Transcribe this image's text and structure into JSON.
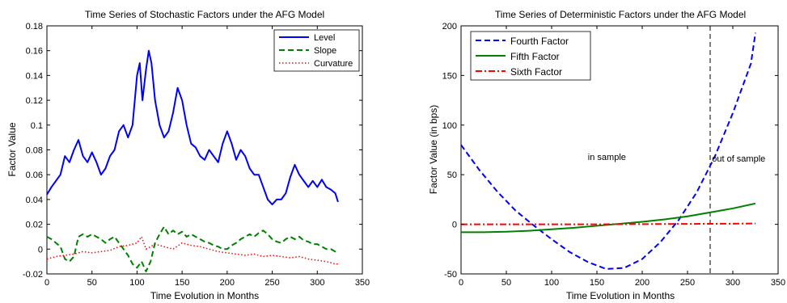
{
  "chart_data": [
    {
      "type": "line",
      "title": "Time Series of Stochastic Factors under the AFG Model",
      "xlabel": "Time Evolution in Months",
      "ylabel": "Factor Value",
      "xlim": [
        0,
        350
      ],
      "ylim": [
        -0.02,
        0.18
      ],
      "xticks": [
        0,
        50,
        100,
        150,
        200,
        250,
        300,
        350
      ],
      "yticks": [
        -0.02,
        0,
        0.02,
        0.04,
        0.06,
        0.08,
        0.1,
        0.12,
        0.14,
        0.16,
        0.18
      ],
      "xtick_labels": [
        "0",
        "50",
        "100",
        "150",
        "200",
        "250",
        "300",
        "350"
      ],
      "ytick_labels": [
        "-0.02",
        "0",
        "0.02",
        "0.04",
        "0.06",
        "0.08",
        "0.1",
        "0.12",
        "0.14",
        "0.16",
        "0.18"
      ],
      "grid": false,
      "legend_position": "top-right",
      "series": [
        {
          "name": "Level",
          "color": "#0000ff",
          "style": "solid",
          "x": [
            0,
            5,
            10,
            15,
            20,
            25,
            30,
            35,
            40,
            45,
            50,
            55,
            60,
            65,
            70,
            75,
            80,
            85,
            90,
            95,
            100,
            103,
            106,
            110,
            113,
            116,
            120,
            125,
            130,
            135,
            140,
            145,
            150,
            155,
            160,
            165,
            170,
            175,
            180,
            185,
            190,
            195,
            200,
            205,
            210,
            215,
            220,
            225,
            230,
            235,
            240,
            245,
            250,
            255,
            260,
            265,
            270,
            275,
            280,
            285,
            290,
            295,
            300,
            305,
            310,
            315,
            320,
            323
          ],
          "y": [
            0.044,
            0.05,
            0.055,
            0.06,
            0.075,
            0.07,
            0.08,
            0.088,
            0.075,
            0.07,
            0.078,
            0.07,
            0.06,
            0.065,
            0.075,
            0.08,
            0.095,
            0.1,
            0.09,
            0.1,
            0.14,
            0.15,
            0.12,
            0.145,
            0.16,
            0.15,
            0.12,
            0.1,
            0.09,
            0.095,
            0.11,
            0.13,
            0.12,
            0.1,
            0.085,
            0.082,
            0.075,
            0.072,
            0.08,
            0.075,
            0.07,
            0.085,
            0.095,
            0.085,
            0.072,
            0.08,
            0.075,
            0.065,
            0.06,
            0.06,
            0.05,
            0.04,
            0.036,
            0.04,
            0.04,
            0.045,
            0.058,
            0.068,
            0.06,
            0.055,
            0.05,
            0.055,
            0.05,
            0.056,
            0.05,
            0.048,
            0.045,
            0.038
          ]
        },
        {
          "name": "Slope",
          "color": "#008000",
          "style": "dashed",
          "x": [
            0,
            5,
            10,
            15,
            20,
            25,
            30,
            35,
            40,
            45,
            50,
            55,
            60,
            65,
            70,
            75,
            80,
            85,
            90,
            95,
            100,
            105,
            110,
            115,
            120,
            125,
            130,
            135,
            140,
            145,
            150,
            155,
            160,
            165,
            170,
            175,
            180,
            185,
            190,
            195,
            200,
            205,
            210,
            215,
            220,
            225,
            230,
            235,
            240,
            245,
            250,
            255,
            260,
            265,
            270,
            275,
            280,
            285,
            290,
            295,
            300,
            305,
            310,
            315,
            320,
            323
          ],
          "y": [
            0.01,
            0.008,
            0.005,
            0.002,
            -0.008,
            -0.01,
            -0.006,
            0.01,
            0.012,
            0.01,
            0.012,
            0.01,
            0.008,
            0.005,
            0.008,
            0.01,
            0.005,
            0.0,
            -0.005,
            -0.012,
            -0.015,
            -0.01,
            -0.018,
            -0.01,
            0.005,
            0.012,
            0.018,
            0.012,
            0.015,
            0.012,
            0.014,
            0.01,
            0.012,
            0.01,
            0.008,
            0.006,
            0.005,
            0.003,
            0.002,
            0.0,
            0.0,
            0.003,
            0.005,
            0.008,
            0.01,
            0.012,
            0.01,
            0.013,
            0.015,
            0.012,
            0.008,
            0.006,
            0.005,
            0.008,
            0.01,
            0.008,
            0.01,
            0.007,
            0.006,
            0.004,
            0.004,
            0.002,
            0.0,
            0.0,
            -0.002,
            -0.001
          ]
        },
        {
          "name": "Curvature",
          "color": "#ff0000",
          "style": "dotted",
          "x": [
            0,
            10,
            20,
            30,
            40,
            50,
            60,
            70,
            80,
            90,
            100,
            105,
            110,
            120,
            130,
            140,
            150,
            160,
            170,
            180,
            190,
            200,
            210,
            220,
            230,
            240,
            250,
            260,
            270,
            280,
            290,
            300,
            310,
            320,
            323
          ],
          "y": [
            -0.008,
            -0.006,
            -0.005,
            -0.004,
            -0.002,
            -0.003,
            -0.002,
            -0.001,
            0.002,
            0.003,
            0.005,
            0.01,
            0.0,
            0.004,
            0.002,
            0.0,
            0.005,
            0.003,
            0.002,
            0.0,
            -0.002,
            -0.003,
            -0.004,
            -0.005,
            -0.004,
            -0.006,
            -0.005,
            -0.006,
            -0.007,
            -0.006,
            -0.008,
            -0.009,
            -0.01,
            -0.012,
            -0.012
          ]
        }
      ]
    },
    {
      "type": "line",
      "title": "Time Series of Deterministic Factors under the AFG Model",
      "xlabel": "Time Evolution in Months",
      "ylabel": "Factor Value (in bps)",
      "xlim": [
        0,
        350
      ],
      "ylim": [
        -50,
        200
      ],
      "xticks": [
        0,
        50,
        100,
        150,
        200,
        250,
        300,
        350
      ],
      "yticks": [
        -50,
        0,
        50,
        100,
        150,
        200
      ],
      "xtick_labels": [
        "0",
        "50",
        "100",
        "150",
        "200",
        "250",
        "300",
        "350"
      ],
      "ytick_labels": [
        "-50",
        "0",
        "50",
        "100",
        "150",
        "200"
      ],
      "grid": false,
      "legend_position": "top-left",
      "vline": {
        "x": 275,
        "color": "#000000",
        "style": "dashed"
      },
      "annotations": [
        {
          "text": "in sample",
          "x": 140,
          "y": 65
        },
        {
          "text": "out of sample",
          "x": 277,
          "y": 63
        }
      ],
      "series": [
        {
          "name": "Fourth Factor",
          "color": "#0000ff",
          "style": "dashed",
          "x": [
            0,
            20,
            40,
            60,
            80,
            100,
            120,
            140,
            160,
            180,
            200,
            220,
            240,
            260,
            280,
            300,
            320,
            325
          ],
          "y": [
            80,
            55,
            33,
            14,
            -1,
            -15,
            -28,
            -38,
            -45,
            -44,
            -35,
            -18,
            4,
            32,
            68,
            112,
            162,
            193
          ]
        },
        {
          "name": "Fifth Factor",
          "color": "#008000",
          "style": "solid",
          "x": [
            0,
            25,
            50,
            75,
            100,
            125,
            150,
            175,
            200,
            225,
            250,
            275,
            300,
            325
          ],
          "y": [
            -8,
            -8,
            -7.5,
            -6.5,
            -5,
            -3.5,
            -1.5,
            0.5,
            2.5,
            5,
            8,
            12,
            16,
            21
          ]
        },
        {
          "name": "Sixth Factor",
          "color": "#ff0000",
          "style": "dashdot",
          "x": [
            0,
            50,
            100,
            150,
            200,
            250,
            300,
            325
          ],
          "y": [
            0,
            0,
            0,
            0,
            0.2,
            0.4,
            0.6,
            0.8
          ]
        }
      ]
    }
  ]
}
